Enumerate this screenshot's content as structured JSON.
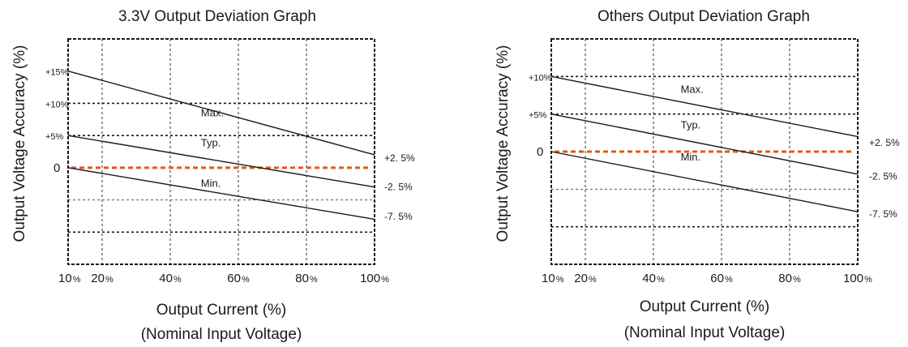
{
  "chart_data": [
    {
      "type": "line",
      "title": "3.3V Output Deviation Graph",
      "xlabel": "Output Current (%)",
      "xlabel_sub": "(Nominal Input Voltage)",
      "ylabel": "Output Voltage Accuracy (%)",
      "xlim": [
        10,
        100
      ],
      "ylim": [
        -15,
        20
      ],
      "x_ticks": [
        {
          "value": 10,
          "num": "10",
          "unit": "%"
        },
        {
          "value": 20,
          "num": "20",
          "unit": "%"
        },
        {
          "value": 40,
          "num": "40",
          "unit": "%"
        },
        {
          "value": 60,
          "num": "60",
          "unit": "%"
        },
        {
          "value": 80,
          "num": "80",
          "unit": "%"
        },
        {
          "value": 100,
          "num": "100",
          "unit": "%"
        }
      ],
      "y_ticks": [
        {
          "value": 15,
          "label": "+15%"
        },
        {
          "value": 10,
          "label": "+10%"
        },
        {
          "value": 5,
          "label": "+5%"
        },
        {
          "value": 0,
          "label": "0"
        }
      ],
      "grid_major_y": [
        10,
        5,
        -10
      ],
      "grid_minor_y": [
        -5
      ],
      "grid_x": [
        20,
        40,
        60,
        80
      ],
      "series": [
        {
          "name": "Max.",
          "x": [
            10,
            100
          ],
          "y": [
            15,
            2
          ]
        },
        {
          "name": "Typ.",
          "x": [
            10,
            100
          ],
          "y": [
            5,
            -3
          ]
        },
        {
          "name": "Min.",
          "x": [
            10,
            100
          ],
          "y": [
            0,
            -8
          ]
        }
      ],
      "series_label_pos": [
        {
          "x": 49,
          "y": 8
        },
        {
          "x": 49,
          "y": 3.3
        },
        {
          "x": 49,
          "y": -3
        }
      ],
      "right_labels": [
        {
          "text": "+2. 5%",
          "y": 1.5
        },
        {
          "text": "-2. 5%",
          "y": -3
        },
        {
          "text": "-7. 5%",
          "y": -7.6
        }
      ],
      "zero_line": 0,
      "zero_line_color": "#e05a1a"
    },
    {
      "type": "line",
      "title": "Others Output Deviation Graph",
      "xlabel": "Output Current (%)",
      "xlabel_sub": "(Nominal Input Voltage)",
      "ylabel": "Output Voltage Accuracy (%)",
      "xlim": [
        10,
        100
      ],
      "ylim": [
        -15,
        15
      ],
      "x_ticks": [
        {
          "value": 10,
          "num": "10",
          "unit": "%"
        },
        {
          "value": 20,
          "num": "20",
          "unit": "%"
        },
        {
          "value": 40,
          "num": "40",
          "unit": "%"
        },
        {
          "value": 60,
          "num": "60",
          "unit": "%"
        },
        {
          "value": 80,
          "num": "80",
          "unit": "%"
        },
        {
          "value": 100,
          "num": "100",
          "unit": "%"
        }
      ],
      "y_ticks": [
        {
          "value": 10,
          "label": "+10%"
        },
        {
          "value": 5,
          "label": "+5%"
        },
        {
          "value": 0,
          "label": "0"
        }
      ],
      "grid_major_y": [
        10,
        5,
        -10
      ],
      "grid_minor_y": [
        -5
      ],
      "grid_x": [
        20,
        40,
        60,
        80
      ],
      "series": [
        {
          "name": "Max.",
          "x": [
            10,
            100
          ],
          "y": [
            10,
            2
          ]
        },
        {
          "name": "Typ.",
          "x": [
            10,
            100
          ],
          "y": [
            5,
            -3
          ]
        },
        {
          "name": "Min.",
          "x": [
            10,
            100
          ],
          "y": [
            0,
            -8
          ]
        }
      ],
      "series_label_pos": [
        {
          "x": 48,
          "y": 7.8
        },
        {
          "x": 48,
          "y": 3.1
        },
        {
          "x": 48,
          "y": -1.2
        }
      ],
      "right_labels": [
        {
          "text": "+2. 5%",
          "y": 1.2
        },
        {
          "text": "-2. 5%",
          "y": -3.3
        },
        {
          "text": "-7. 5%",
          "y": -8.3
        }
      ],
      "zero_line": 0,
      "zero_line_color": "#e05a1a"
    }
  ]
}
